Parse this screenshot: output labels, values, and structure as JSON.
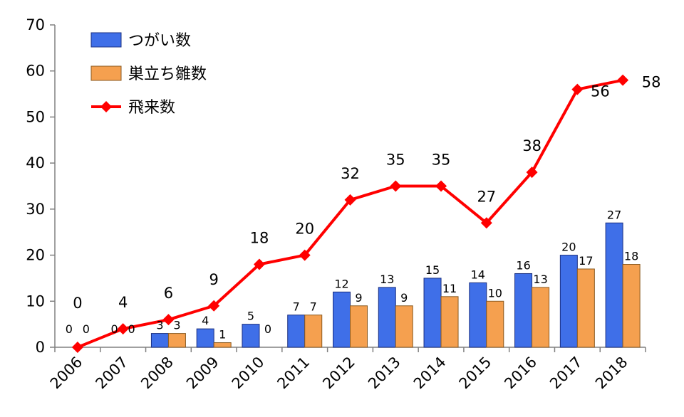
{
  "chart_data": {
    "type": "bar",
    "categories": [
      "2006",
      "2007",
      "2008",
      "2009",
      "2010",
      "2011",
      "2012",
      "2013",
      "2014",
      "2015",
      "2016",
      "2017",
      "2018"
    ],
    "series": [
      {
        "name": "つがい数",
        "kind": "bar",
        "color": "#3f6fe8",
        "values": [
          0,
          0,
          3,
          4,
          5,
          7,
          12,
          13,
          15,
          14,
          16,
          20,
          27
        ],
        "labels": [
          "0",
          "0",
          "3",
          "4",
          "5",
          "7",
          "12",
          "13",
          "15",
          "14",
          "16",
          "20",
          "27"
        ]
      },
      {
        "name": "巣立ち雛数",
        "kind": "bar",
        "color": "#f5a04f",
        "values": [
          0,
          0,
          3,
          1,
          0,
          7,
          9,
          9,
          11,
          10,
          13,
          17,
          18
        ],
        "labels": [
          "0",
          "0",
          "3",
          "1",
          "0",
          "7",
          "9",
          "9",
          "11",
          "10",
          "13",
          "17",
          "18"
        ]
      },
      {
        "name": "飛来数",
        "kind": "line",
        "color": "#ff0000",
        "values": [
          0,
          4,
          6,
          9,
          18,
          20,
          32,
          35,
          35,
          27,
          38,
          56,
          58
        ],
        "labels": [
          "0",
          "4",
          "6",
          "9",
          "18",
          "20",
          "32",
          "35",
          "35",
          "27",
          "38",
          "56",
          "58"
        ]
      }
    ],
    "ylim": [
      0,
      70
    ],
    "yticks": [
      "0",
      "10",
      "20",
      "30",
      "40",
      "50",
      "60",
      "70"
    ],
    "grid": false,
    "legend_position": "top-left"
  }
}
